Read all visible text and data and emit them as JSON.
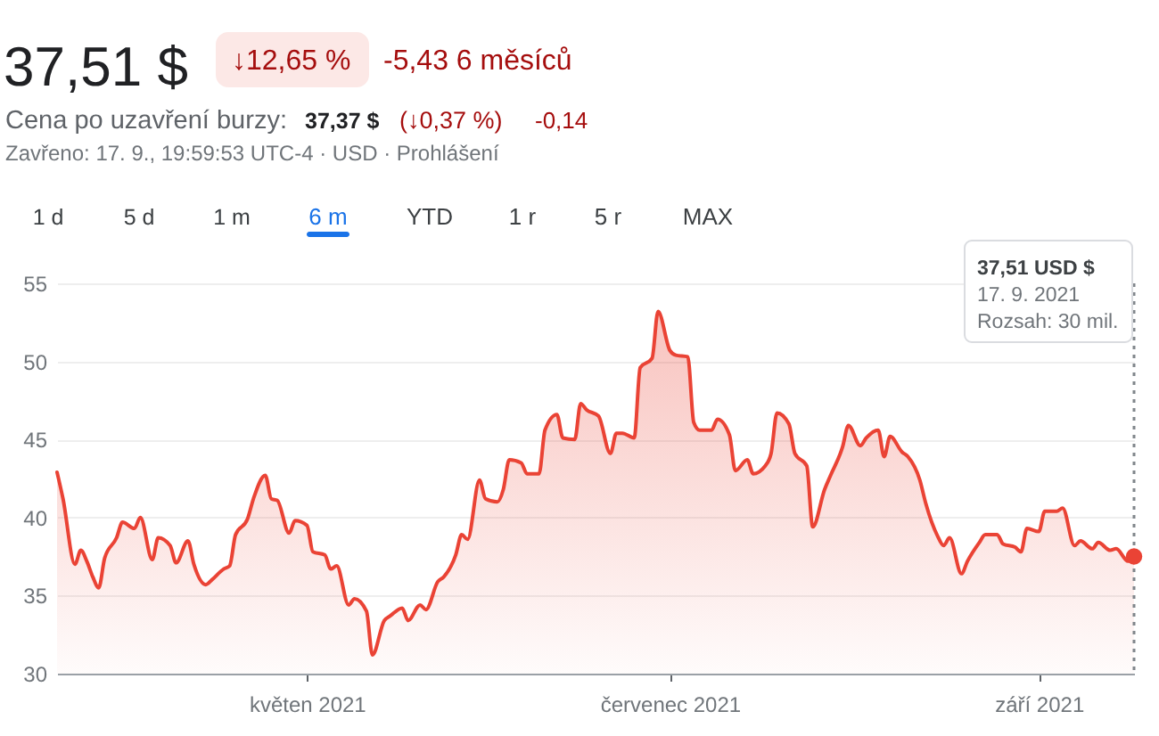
{
  "chart_data": {
    "type": "area",
    "title": "37,51 $",
    "annotations": [
      "↓12,65 %",
      "-5,43 6 měsíců",
      "Cena po uzavření burzy:",
      "37,37 $",
      "(↓0,37 %)",
      "-0,14",
      "Zavřeno: 17. 9., 19:59:53 UTC-4 · USD · Prohlášení",
      "1 d",
      "5 d",
      "1 m",
      "6 m",
      "YTD",
      "1 r",
      "5 r",
      "MAX",
      "37,51 USD $",
      "17. 9. 2021",
      "Rozsah: 30 mil."
    ],
    "x": [
      "2021-03-20",
      "2021-03-21",
      "2021-03-23",
      "2021-03-24",
      "2021-03-25",
      "2021-03-26",
      "2021-03-27",
      "2021-03-28",
      "2021-03-30",
      "2021-03-31",
      "2021-04-02",
      "2021-04-03",
      "2021-04-05",
      "2021-04-06",
      "2021-04-08",
      "2021-04-09",
      "2021-04-11",
      "2021-04-12",
      "2021-04-14",
      "2021-04-15",
      "2021-04-17",
      "2021-04-18",
      "2021-04-19",
      "2021-04-21",
      "2021-04-22",
      "2021-04-24",
      "2021-04-25",
      "2021-04-26",
      "2021-04-28",
      "2021-04-29",
      "2021-05-01",
      "2021-05-02",
      "2021-05-04",
      "2021-05-05",
      "2021-05-06",
      "2021-05-08",
      "2021-05-09",
      "2021-05-11",
      "2021-05-12",
      "2021-05-14",
      "2021-05-15",
      "2021-05-17",
      "2021-05-18",
      "2021-05-20",
      "2021-05-21",
      "2021-05-23",
      "2021-05-24",
      "2021-05-26",
      "2021-05-27",
      "2021-05-28",
      "2021-05-30",
      "2021-05-31",
      "2021-06-02",
      "2021-06-03",
      "2021-06-04",
      "2021-06-06",
      "2021-06-07",
      "2021-06-09",
      "2021-06-10",
      "2021-06-12",
      "2021-06-13",
      "2021-06-15",
      "2021-06-16",
      "2021-06-17",
      "2021-06-19",
      "2021-06-21",
      "2021-06-22",
      "2021-06-23",
      "2021-06-25",
      "2021-06-26",
      "2021-06-28",
      "2021-06-29",
      "2021-07-01",
      "2021-07-02",
      "2021-07-04",
      "2021-07-05",
      "2021-07-06",
      "2021-07-08",
      "2021-07-09",
      "2021-07-11",
      "2021-07-12",
      "2021-07-14",
      "2021-07-15",
      "2021-07-17",
      "2021-07-18",
      "2021-07-19",
      "2021-07-21",
      "2021-07-22",
      "2021-07-24",
      "2021-07-25",
      "2021-07-27",
      "2021-07-28",
      "2021-07-30",
      "2021-07-31",
      "2021-08-02",
      "2021-08-03",
      "2021-08-05",
      "2021-08-06",
      "2021-08-07",
      "2021-08-09",
      "2021-08-10",
      "2021-08-12",
      "2021-08-13",
      "2021-08-15",
      "2021-08-16",
      "2021-08-17",
      "2021-08-19",
      "2021-08-20",
      "2021-08-22",
      "2021-08-23",
      "2021-08-25",
      "2021-08-26",
      "2021-08-28",
      "2021-08-29",
      "2021-08-30",
      "2021-09-01",
      "2021-09-02",
      "2021-09-04",
      "2021-09-05",
      "2021-09-07",
      "2021-09-08",
      "2021-09-10",
      "2021-09-11",
      "2021-09-13",
      "2021-09-14",
      "2021-09-16",
      "2021-09-17"
    ],
    "series": [
      {
        "color": "#ea4335",
        "values": [
          42.9,
          41.2,
          37.0,
          37.9,
          37.2,
          36.2,
          35.5,
          37.4,
          38.7,
          39.7,
          39.3,
          40.0,
          37.3,
          38.7,
          38.2,
          37.1,
          38.5,
          37.0,
          35.7,
          36.0,
          36.7,
          36.9,
          38.9,
          39.9,
          41.2,
          42.7,
          41.2,
          41.1,
          39.0,
          39.8,
          39.5,
          37.8,
          37.6,
          36.7,
          36.9,
          34.4,
          34.8,
          34.0,
          31.2,
          33.4,
          33.7,
          34.2,
          33.4,
          34.4,
          34.1,
          35.9,
          36.2,
          37.6,
          38.9,
          38.6,
          42.4,
          41.2,
          41.0,
          41.8,
          43.7,
          43.5,
          42.8,
          42.8,
          45.6,
          46.6,
          45.1,
          45.0,
          47.3,
          46.9,
          46.5,
          44.1,
          45.4,
          45.4,
          45.1,
          49.6,
          50.2,
          53.2,
          50.7,
          50.4,
          50.3,
          46.1,
          45.6,
          45.6,
          46.3,
          45.3,
          43.0,
          43.7,
          42.8,
          43.3,
          44.1,
          46.7,
          46.0,
          44.1,
          43.3,
          39.4,
          41.8,
          42.7,
          44.5,
          45.9,
          44.6,
          45.1,
          45.6,
          43.9,
          45.2,
          44.2,
          43.9,
          42.4,
          40.9,
          38.8,
          38.2,
          38.7,
          36.4,
          37.2,
          38.4,
          38.9,
          38.9,
          38.3,
          38.1,
          37.8,
          39.3,
          39.1,
          40.4,
          40.4,
          40.6,
          38.2,
          38.5,
          38.0,
          38.4,
          37.9,
          38.0,
          37.2,
          37.51
        ]
      },
      {
        "type": "scatter",
        "marker": "circle",
        "color": "#ea4335",
        "x": [
          "2021-09-17"
        ],
        "values": [
          37.51
        ]
      }
    ],
    "xlim": [
      "2021-03-20",
      "2021-09-17"
    ],
    "xticks": [
      {
        "value": "2021-05-01",
        "label": "květen 2021"
      },
      {
        "value": "2021-07-01",
        "label": "červenec 2021"
      },
      {
        "value": "2021-09-01",
        "label": "září 2021"
      }
    ],
    "ylim": [
      30,
      55
    ],
    "yticks": [
      30,
      35,
      40,
      45,
      50,
      55
    ],
    "grid": "y",
    "ref_lines": [
      {
        "axis": "x",
        "value": "2021-09-17",
        "color": "#80868b",
        "line_style": "dotted"
      }
    ]
  }
}
